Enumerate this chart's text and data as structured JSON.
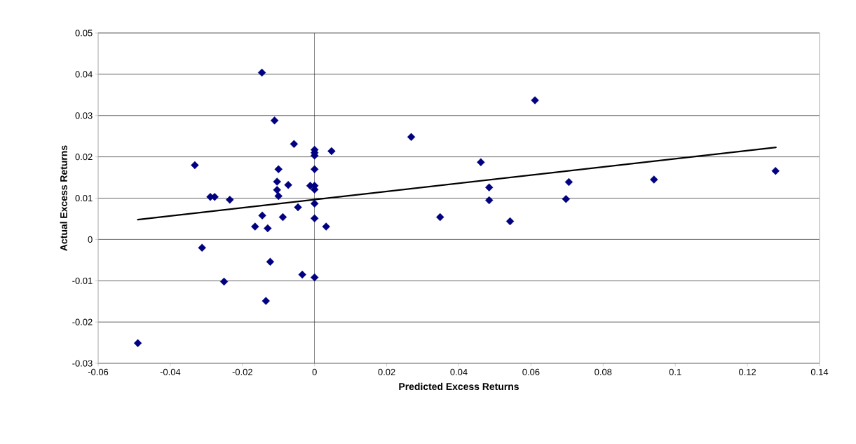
{
  "chart_data": {
    "type": "scatter",
    "xlabel": "Predicted Excess Returns",
    "ylabel": "Actual Excess Returns",
    "xlim": [
      -0.06,
      0.14
    ],
    "ylim": [
      -0.03,
      0.05
    ],
    "xticks": [
      -0.06,
      -0.04,
      -0.02,
      0,
      0.02,
      0.04,
      0.06,
      0.08,
      0.1,
      0.12,
      0.14
    ],
    "yticks": [
      -0.03,
      -0.02,
      -0.01,
      0,
      0.01,
      0.02,
      0.03,
      0.04,
      0.05
    ],
    "grid": "y",
    "marker": "diamond",
    "ref_lines": [
      {
        "axis": "x",
        "value": 0,
        "color": "#000000"
      }
    ],
    "series": [
      {
        "color": "#000080",
        "x": [
          -0.0146,
          -0.0111,
          -0.0057,
          0,
          0,
          0,
          0.0047,
          -0.0332,
          -0.01,
          0,
          -0.0104,
          -0.0073,
          -0.0012,
          0,
          0,
          -0.0104,
          -0.01,
          -0.0289,
          -0.0277,
          -0.0235,
          -0.0145,
          -0.0088,
          -0.0046,
          0,
          0,
          0.0032,
          -0.0165,
          -0.013,
          -0.0312,
          -0.0123,
          -0.0034,
          0,
          -0.0251,
          -0.0135,
          -0.049,
          0.0268,
          0.0461,
          0.0484,
          0.0484,
          0.0348,
          0.0542,
          0.0705,
          0.0697,
          0.0941,
          0.1278,
          0.0611
        ],
        "values": [
          0.0404,
          0.0288,
          0.0231,
          0.0217,
          0.021,
          0.0203,
          0.0214,
          0.018,
          0.017,
          0.017,
          0.014,
          0.0132,
          0.013,
          0.013,
          0.0121,
          0.012,
          0.0105,
          0.0103,
          0.0103,
          0.0096,
          0.0058,
          0.0054,
          0.0078,
          0.0087,
          0.0051,
          0.0031,
          0.0031,
          0.0027,
          -0.002,
          -0.0054,
          -0.0085,
          -0.0092,
          -0.0102,
          -0.0149,
          -0.0251,
          0.0248,
          0.0187,
          0.0126,
          0.0095,
          0.0054,
          0.0044,
          0.0139,
          0.0098,
          0.0145,
          0.0166,
          0.0337
        ]
      },
      {
        "type": "line",
        "color": "#000000",
        "line_style": "solid",
        "marker": "none",
        "x": [
          -0.049,
          0.1279
        ],
        "values": [
          0.0048,
          0.0223
        ]
      }
    ]
  }
}
